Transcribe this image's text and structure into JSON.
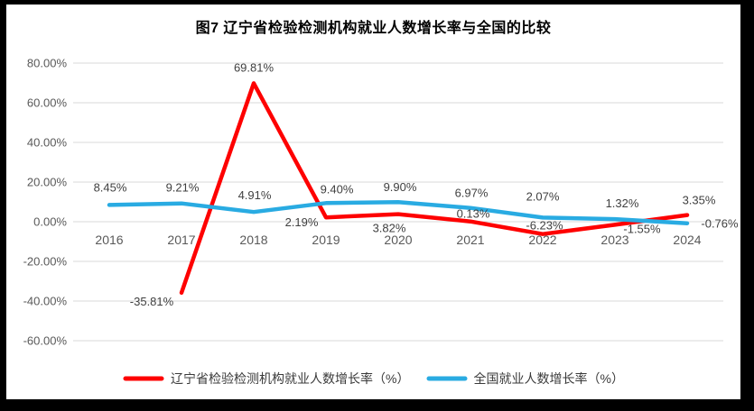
{
  "chart_data": {
    "type": "line",
    "title": "图7  辽宁省检验检测机构就业人数增长率与全国的比较",
    "xlabel": "",
    "ylabel": "",
    "categories": [
      "2016",
      "2017",
      "2018",
      "2019",
      "2020",
      "2021",
      "2022",
      "2023",
      "2024"
    ],
    "series": [
      {
        "name": "辽宁省检验检测机构就业人数增长率（%）",
        "color": "#fe0000",
        "values": [
          null,
          -35.81,
          69.81,
          2.19,
          3.82,
          0.13,
          -6.23,
          -1.55,
          3.35
        ]
      },
      {
        "name": "全国就业人数增长率（%）",
        "color": "#29abe2",
        "values": [
          8.45,
          9.21,
          4.91,
          9.4,
          9.9,
          6.97,
          2.07,
          1.32,
          -0.76
        ]
      }
    ],
    "ylim": [
      -60,
      80
    ],
    "yticks": [
      80,
      60,
      40,
      20,
      0,
      -20,
      -40,
      -60
    ],
    "ytick_format": "0.00%",
    "data_labels": true,
    "grid": true,
    "legend_position": "bottom",
    "gridline_color": "#d9d9d9",
    "axis_label_color": "#595959",
    "data_label_color": "#404040",
    "background_color": "#ffffff",
    "frame_color": "#000000",
    "label_offsets": [
      [
        null,
        [
          -33,
          14
        ],
        [
          0,
          -13
        ],
        [
          -27,
          10
        ],
        [
          -10,
          20
        ],
        [
          3,
          -4
        ],
        [
          2,
          -5
        ],
        [
          30,
          9
        ],
        [
          13,
          -12
        ]
      ],
      [
        [
          1,
          -15
        ],
        [
          1,
          -13
        ],
        [
          1,
          -14
        ],
        [
          12,
          -11
        ],
        [
          2,
          -12
        ],
        [
          1,
          -12
        ],
        [
          0,
          -19
        ],
        [
          8,
          -13
        ],
        [
          36,
          5
        ]
      ]
    ]
  }
}
